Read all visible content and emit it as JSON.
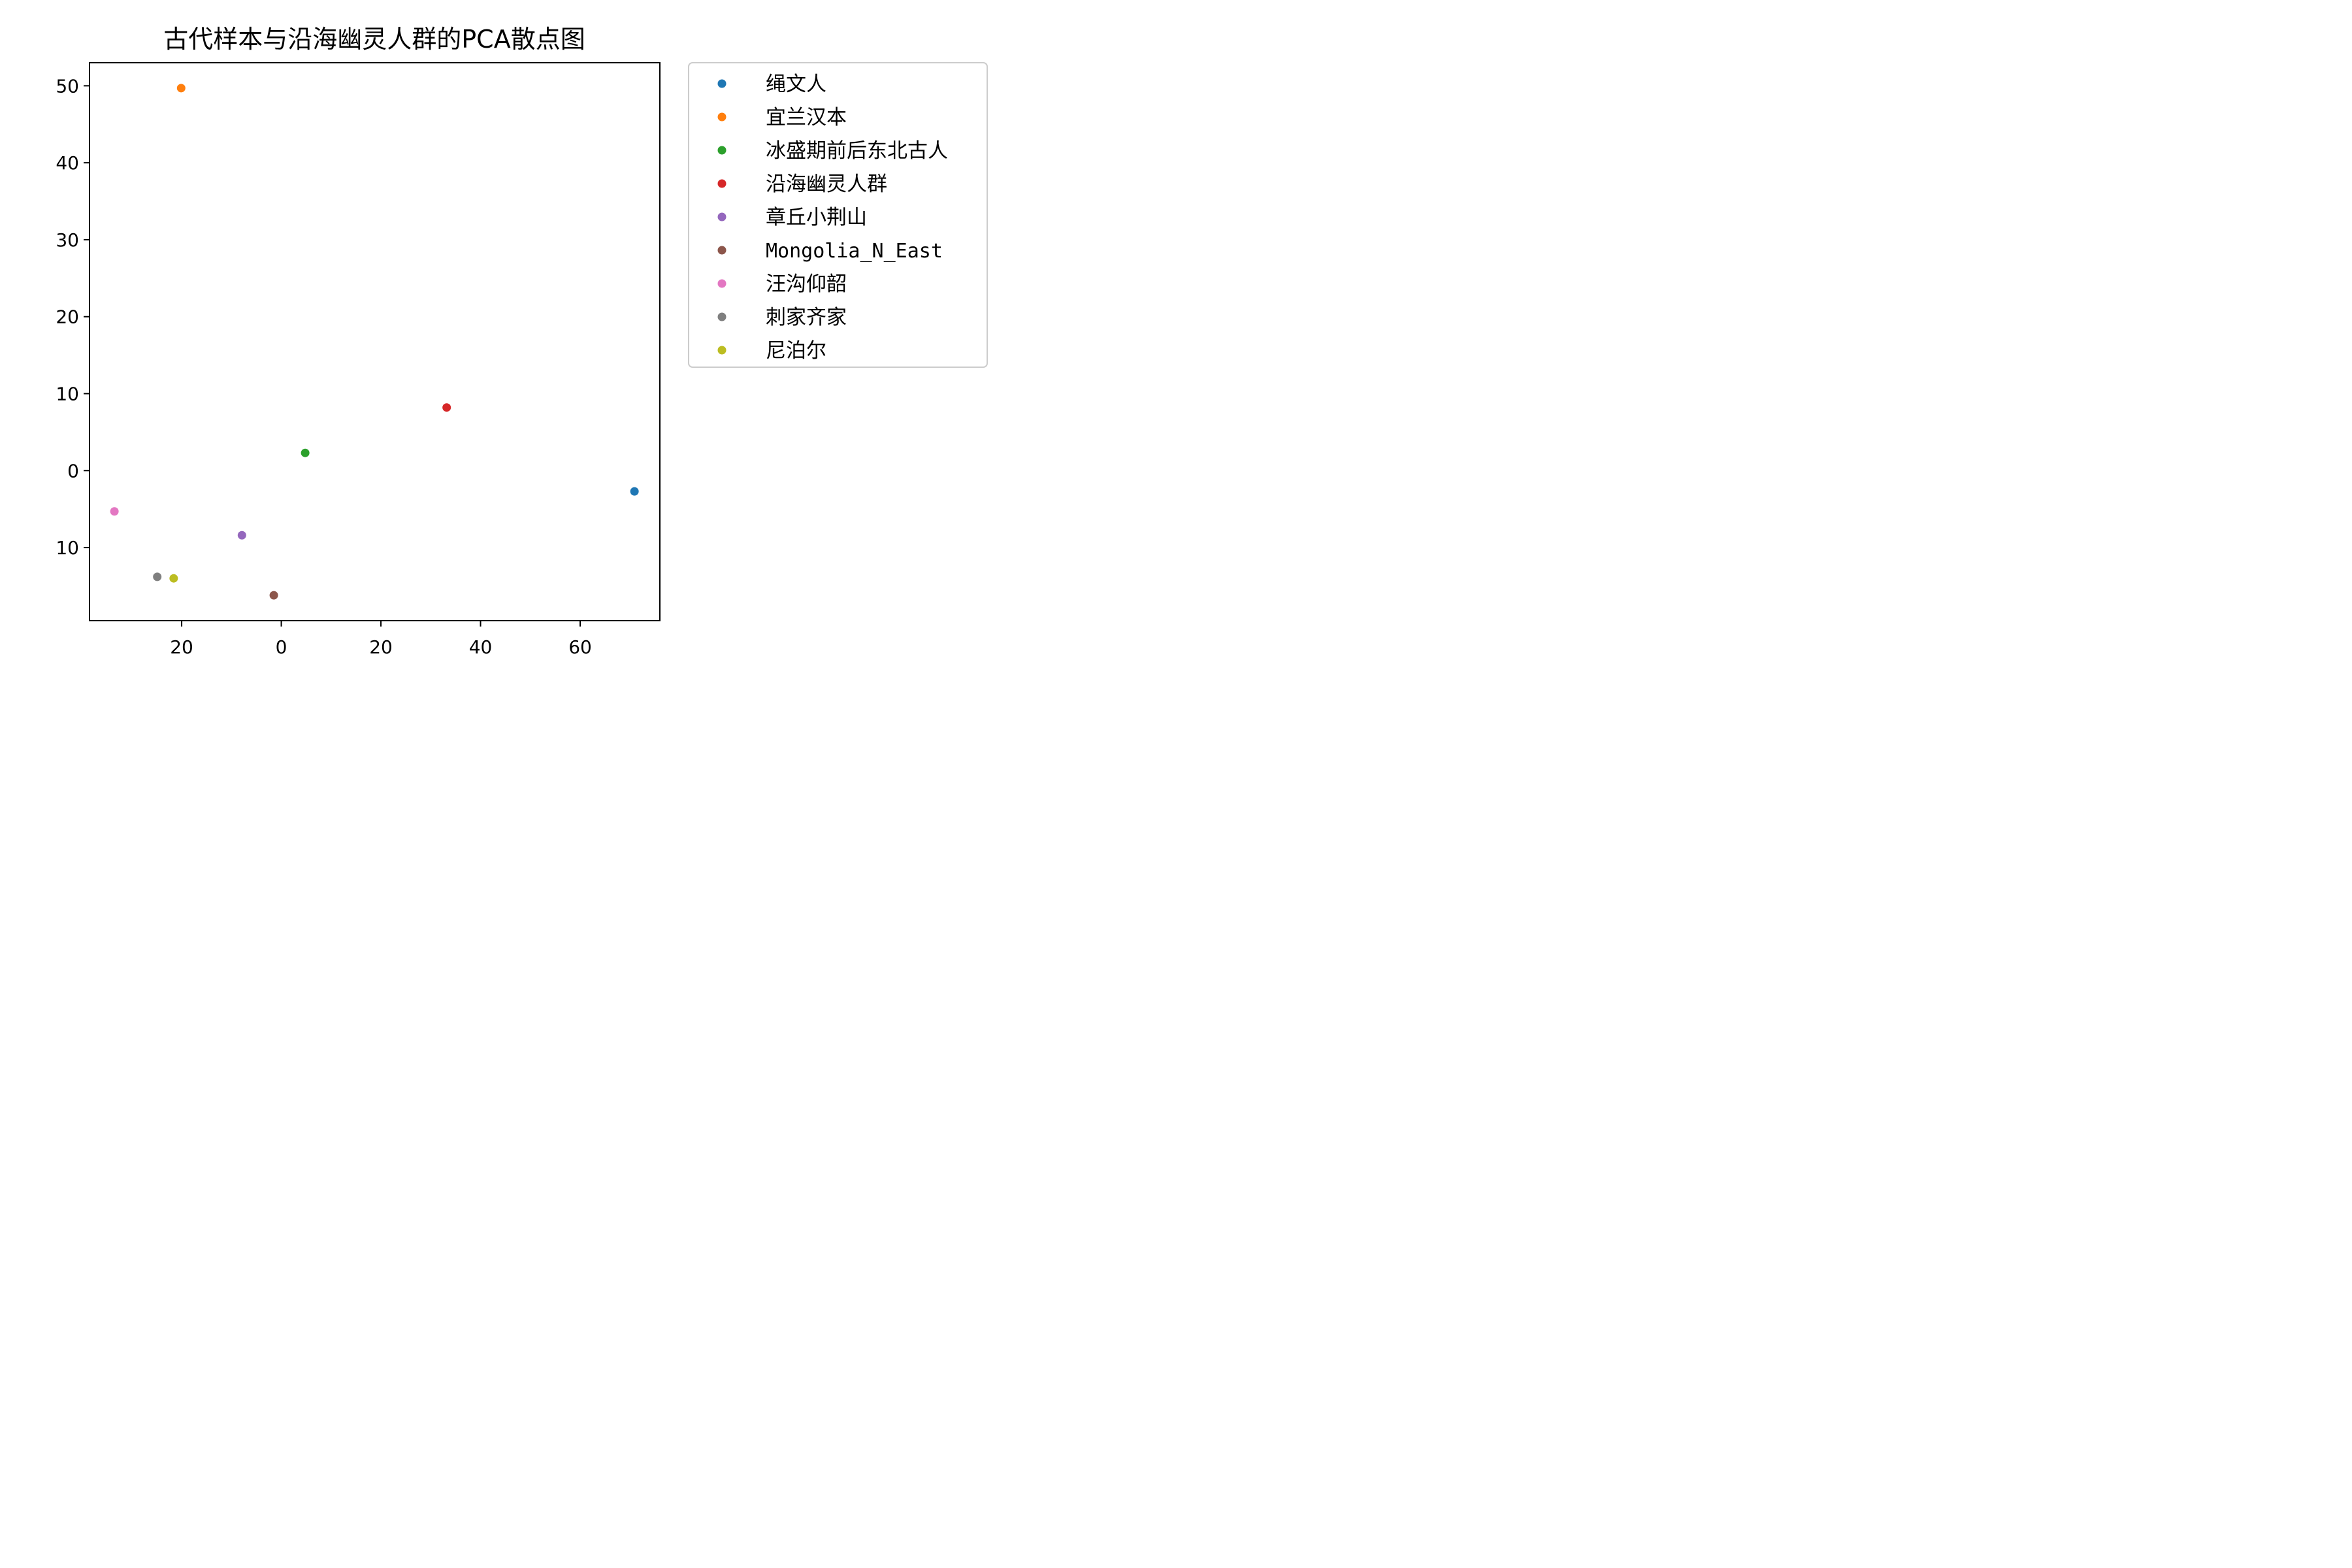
{
  "chart_data": {
    "type": "scatter",
    "title": "古代样本与沿海幽灵人群的PCA散点图",
    "xlabel": "",
    "ylabel": "",
    "xlim": [
      -38.5,
      76.0
    ],
    "ylim": [
      -19.5,
      53.0
    ],
    "grid": false,
    "legend_position": "outside-right",
    "x_ticks": [
      {
        "value": -20,
        "label": "20"
      },
      {
        "value": 0,
        "label": "0"
      },
      {
        "value": 20,
        "label": "20"
      },
      {
        "value": 40,
        "label": "40"
      },
      {
        "value": 60,
        "label": "60"
      }
    ],
    "y_ticks": [
      {
        "value": -10,
        "label": "10"
      },
      {
        "value": 0,
        "label": "0"
      },
      {
        "value": 10,
        "label": "10"
      },
      {
        "value": 20,
        "label": "20"
      },
      {
        "value": 30,
        "label": "30"
      },
      {
        "value": 40,
        "label": "40"
      },
      {
        "value": 50,
        "label": "50"
      }
    ],
    "series": [
      {
        "name": "绳文人",
        "color": "#1f77b4",
        "x": [
          70.9
        ],
        "y": [
          -2.7
        ]
      },
      {
        "name": "宜兰汉本",
        "color": "#ff7f0e",
        "x": [
          -20.1
        ],
        "y": [
          49.7
        ]
      },
      {
        "name": "冰盛期前后东北古人",
        "color": "#2ca02c",
        "x": [
          4.8
        ],
        "y": [
          2.3
        ]
      },
      {
        "name": "沿海幽灵人群",
        "color": "#d62728",
        "x": [
          33.2
        ],
        "y": [
          8.2
        ]
      },
      {
        "name": "章丘小荆山",
        "color": "#9467bd",
        "x": [
          -7.9
        ],
        "y": [
          -8.4
        ]
      },
      {
        "name": "Mongolia_N_East",
        "color": "#8c564b",
        "x": [
          -1.5
        ],
        "y": [
          -16.2
        ]
      },
      {
        "name": "汪沟仰韶",
        "color": "#e377c2",
        "x": [
          -33.5
        ],
        "y": [
          -5.3
        ]
      },
      {
        "name": "刺家齐家",
        "color": "#7f7f7f",
        "x": [
          -24.9
        ],
        "y": [
          -13.8
        ]
      },
      {
        "name": "尼泊尔",
        "color": "#bcbd22",
        "x": [
          -21.6
        ],
        "y": [
          -14.0
        ]
      }
    ]
  }
}
